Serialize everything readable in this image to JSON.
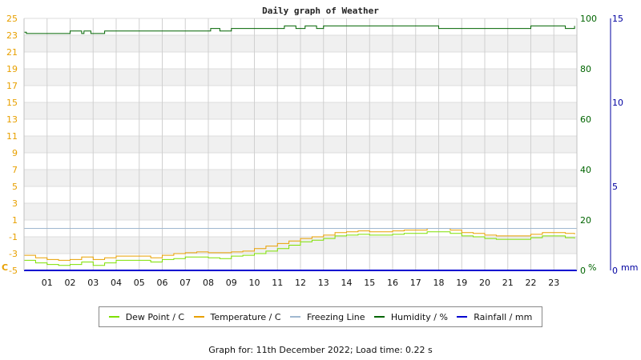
{
  "chart_data": {
    "type": "line",
    "title": "Daily graph of Weather",
    "x_tick_labels": [
      "01",
      "02",
      "03",
      "04",
      "05",
      "06",
      "07",
      "08",
      "09",
      "10",
      "11",
      "12",
      "13",
      "14",
      "15",
      "16",
      "17",
      "18",
      "19",
      "20",
      "21",
      "22",
      "23"
    ],
    "xlim": [
      0,
      24
    ],
    "y_axes": {
      "temperature": {
        "unit_label": "C",
        "ticks": [
          -5,
          -3,
          -1,
          1,
          3,
          5,
          7,
          9,
          11,
          13,
          15,
          17,
          19,
          21,
          23,
          25
        ],
        "ylim": [
          -5,
          25
        ],
        "color": "#e8a000"
      },
      "humidity": {
        "unit_label": "%",
        "ticks": [
          0,
          20,
          40,
          60,
          80,
          100
        ],
        "ylim": [
          0,
          100
        ],
        "color": "#006400"
      },
      "rainfall": {
        "unit_label": "mm",
        "ticks": [
          0,
          5,
          10,
          15
        ],
        "ylim": [
          0,
          15
        ],
        "color": "#0000a0"
      }
    },
    "series": [
      {
        "name": "Dew Point / C",
        "axis": "temperature",
        "color": "#7ee000",
        "x": [
          0,
          0.5,
          1,
          1.5,
          2,
          2.5,
          3,
          3.5,
          4,
          4.5,
          5,
          5.5,
          6,
          6.5,
          7,
          7.5,
          8,
          8.5,
          9,
          9.5,
          10,
          10.5,
          11,
          11.5,
          12,
          12.5,
          13,
          13.5,
          14,
          14.5,
          15,
          15.5,
          16,
          16.5,
          17,
          17.5,
          18,
          18.5,
          19,
          19.5,
          20,
          20.5,
          21,
          21.5,
          22,
          22.5,
          23,
          23.5,
          23.9
        ],
        "y": [
          -3.8,
          -4.1,
          -4.3,
          -4.4,
          -4.3,
          -4.0,
          -4.4,
          -4.1,
          -3.8,
          -3.8,
          -3.8,
          -4.0,
          -3.7,
          -3.6,
          -3.4,
          -3.4,
          -3.5,
          -3.6,
          -3.3,
          -3.2,
          -3.0,
          -2.7,
          -2.4,
          -2.0,
          -1.6,
          -1.4,
          -1.2,
          -0.9,
          -0.8,
          -0.7,
          -0.8,
          -0.8,
          -0.7,
          -0.6,
          -0.6,
          -0.4,
          -0.4,
          -0.6,
          -0.9,
          -1.0,
          -1.2,
          -1.3,
          -1.3,
          -1.3,
          -1.1,
          -0.9,
          -0.9,
          -1.1,
          -1.2
        ]
      },
      {
        "name": "Temperature / C",
        "axis": "temperature",
        "color": "#e8a000",
        "x": [
          0,
          0.5,
          1,
          1.5,
          2,
          2.5,
          3,
          3.5,
          4,
          4.5,
          5,
          5.5,
          6,
          6.5,
          7,
          7.5,
          8,
          8.5,
          9,
          9.5,
          10,
          10.5,
          11,
          11.5,
          12,
          12.5,
          13,
          13.5,
          14,
          14.5,
          15,
          15.5,
          16,
          16.5,
          17,
          17.5,
          18,
          18.5,
          19,
          19.5,
          20,
          20.5,
          21,
          21.5,
          22,
          22.5,
          23,
          23.5,
          23.9
        ],
        "y": [
          -3.2,
          -3.5,
          -3.7,
          -3.8,
          -3.7,
          -3.4,
          -3.7,
          -3.5,
          -3.3,
          -3.3,
          -3.3,
          -3.5,
          -3.2,
          -3.0,
          -2.9,
          -2.8,
          -2.9,
          -2.9,
          -2.8,
          -2.7,
          -2.4,
          -2.1,
          -1.8,
          -1.5,
          -1.2,
          -1.0,
          -0.8,
          -0.5,
          -0.4,
          -0.3,
          -0.4,
          -0.4,
          -0.3,
          -0.2,
          -0.2,
          0.0,
          0.0,
          -0.2,
          -0.5,
          -0.6,
          -0.8,
          -0.9,
          -0.9,
          -0.9,
          -0.7,
          -0.5,
          -0.5,
          -0.6,
          -0.7
        ]
      },
      {
        "name": "Freezing Line",
        "axis": "temperature",
        "color": "#a0b8d0",
        "x": [
          0,
          24
        ],
        "y": [
          0,
          0
        ]
      },
      {
        "name": "Humidity / %",
        "axis": "humidity",
        "color": "#006400",
        "x": [
          0,
          0.1,
          1,
          1.6,
          1.9,
          2.0,
          2.4,
          2.5,
          2.6,
          2.9,
          3.4,
          3.5,
          4.6,
          4.8,
          5.5,
          6,
          6.8,
          7.2,
          7.6,
          8.1,
          8.5,
          9,
          10.5,
          11.1,
          11.3,
          11.8,
          12.2,
          12.7,
          13,
          14,
          15,
          16,
          17,
          17.8,
          18,
          19,
          19.5,
          20,
          21,
          21.5,
          22,
          22.6,
          23.5,
          23.9
        ],
        "y": [
          94.5,
          94,
          94,
          94,
          94,
          95,
          95,
          94,
          95,
          94,
          94,
          95,
          95,
          95,
          95,
          95,
          95,
          95,
          95,
          96,
          95,
          96,
          96,
          96,
          97,
          96,
          97,
          96,
          97,
          97,
          97,
          97,
          97,
          97,
          96,
          96,
          96,
          96,
          96,
          96,
          97,
          97,
          96,
          97
        ]
      },
      {
        "name": "Rainfall / mm",
        "axis": "rainfall",
        "color": "#0000d0",
        "x": [
          0,
          24
        ],
        "y": [
          0,
          0
        ]
      }
    ],
    "legend_position": "bottom",
    "grid": true
  },
  "footer": {
    "text": "Graph for: 11th December 2022; Load time: 0.22 s"
  }
}
